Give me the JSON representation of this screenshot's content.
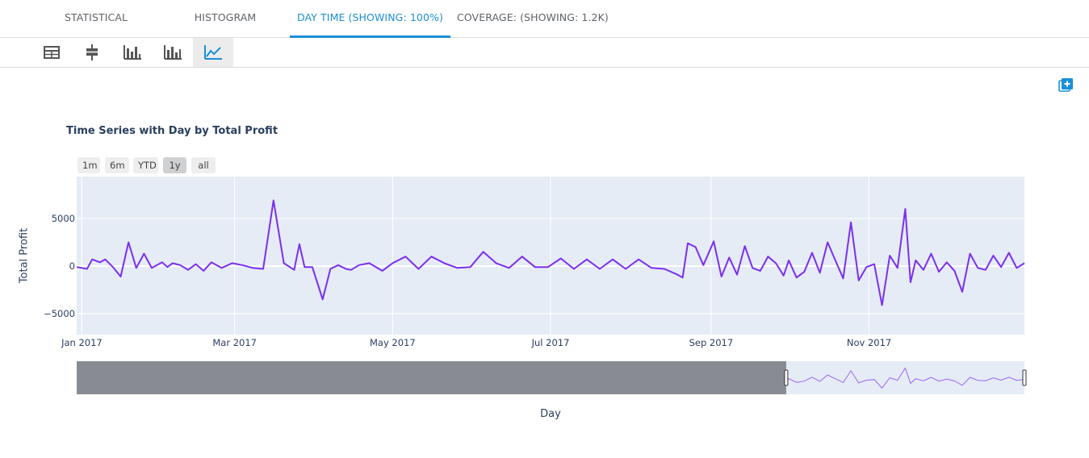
{
  "tabs": [
    {
      "label": "STATISTICAL",
      "active": false
    },
    {
      "label": "HISTOGRAM",
      "active": false
    },
    {
      "label": "DAY TIME (SHOWING: 100%)",
      "active": true
    },
    {
      "label": "COVERAGE: (SHOWING: 1.2K)",
      "active": false
    }
  ],
  "toolbar": {
    "tools": [
      {
        "icon": "table-icon",
        "active": false
      },
      {
        "icon": "boxplot-icon",
        "active": false
      },
      {
        "icon": "histogram-icon",
        "active": false
      },
      {
        "icon": "bar-chart-icon",
        "active": false
      },
      {
        "icon": "line-chart-icon",
        "active": true
      }
    ]
  },
  "add_button": {
    "icon": "add-to-dashboard-icon"
  },
  "range_selector": {
    "buttons": [
      {
        "label": "1m",
        "active": false
      },
      {
        "label": "6m",
        "active": false
      },
      {
        "label": "YTD",
        "active": false
      },
      {
        "label": "1y",
        "active": true
      },
      {
        "label": "all",
        "active": false
      }
    ]
  },
  "chart_data": {
    "type": "line",
    "title": "Time Series with Day by Total Profit",
    "xlabel": "Day",
    "ylabel": "Total Profit",
    "x_range": [
      "2016-12-30",
      "2017-12-31"
    ],
    "ylim": [
      -7200,
      9400
    ],
    "yticks": [
      -5000,
      0,
      5000
    ],
    "ytick_labels": [
      "−5000",
      "0",
      "5000"
    ],
    "xticks": [
      "2017-01-01",
      "2017-03-01",
      "2017-05-01",
      "2017-07-01",
      "2017-09-01",
      "2017-11-01"
    ],
    "xtick_labels": [
      "Jan 2017",
      "Mar 2017",
      "May 2017",
      "Jul 2017",
      "Sep 2017",
      "Nov 2017"
    ],
    "grid": true,
    "colors": {
      "line": "#7a2ff0",
      "plot_bg": "#e5ecf6",
      "grid": "#ffffff",
      "slider_mask": "#888b91"
    },
    "slider_window": [
      "2017-09-30",
      "2017-12-31"
    ],
    "series": [
      {
        "x": [
          "2016-12-30",
          "2017-01-03",
          "2017-01-05",
          "2017-01-08",
          "2017-01-10",
          "2017-01-13",
          "2017-01-16",
          "2017-01-19",
          "2017-01-22",
          "2017-01-25",
          "2017-01-28",
          "2017-02-01",
          "2017-02-03",
          "2017-02-05",
          "2017-02-08",
          "2017-02-11",
          "2017-02-14",
          "2017-02-17",
          "2017-02-20",
          "2017-02-24",
          "2017-02-28",
          "2017-03-04",
          "2017-03-08",
          "2017-03-12",
          "2017-03-16",
          "2017-03-20",
          "2017-03-24",
          "2017-03-26",
          "2017-03-28",
          "2017-03-31",
          "2017-04-04",
          "2017-04-07",
          "2017-04-10",
          "2017-04-13",
          "2017-04-15",
          "2017-04-18",
          "2017-04-22",
          "2017-04-27",
          "2017-05-01",
          "2017-05-06",
          "2017-05-11",
          "2017-05-16",
          "2017-05-21",
          "2017-05-26",
          "2017-05-31",
          "2017-06-05",
          "2017-06-10",
          "2017-06-15",
          "2017-06-20",
          "2017-06-25",
          "2017-06-30",
          "2017-07-05",
          "2017-07-10",
          "2017-07-15",
          "2017-07-20",
          "2017-07-25",
          "2017-07-30",
          "2017-08-04",
          "2017-08-09",
          "2017-08-14",
          "2017-08-19",
          "2017-08-21",
          "2017-08-23",
          "2017-08-26",
          "2017-08-29",
          "2017-09-02",
          "2017-09-05",
          "2017-09-08",
          "2017-09-11",
          "2017-09-14",
          "2017-09-17",
          "2017-09-20",
          "2017-09-23",
          "2017-09-26",
          "2017-09-29",
          "2017-10-01",
          "2017-10-04",
          "2017-10-07",
          "2017-10-10",
          "2017-10-13",
          "2017-10-16",
          "2017-10-19",
          "2017-10-22",
          "2017-10-25",
          "2017-10-28",
          "2017-10-31",
          "2017-11-03",
          "2017-11-06",
          "2017-11-09",
          "2017-11-12",
          "2017-11-15",
          "2017-11-17",
          "2017-11-19",
          "2017-11-22",
          "2017-11-25",
          "2017-11-28",
          "2017-12-01",
          "2017-12-04",
          "2017-12-07",
          "2017-12-10",
          "2017-12-13",
          "2017-12-16",
          "2017-12-19",
          "2017-12-22",
          "2017-12-25",
          "2017-12-28",
          "2017-12-31"
        ],
        "y": [
          -100,
          -300,
          700,
          400,
          700,
          -100,
          -1100,
          2500,
          -200,
          1300,
          -200,
          400,
          -100,
          300,
          100,
          -400,
          200,
          -500,
          400,
          -200,
          300,
          100,
          -200,
          -300,
          6900,
          300,
          -400,
          2300,
          -100,
          -100,
          -3500,
          -300,
          100,
          -300,
          -400,
          100,
          300,
          -500,
          300,
          1000,
          -300,
          1000,
          300,
          -200,
          -100,
          1500,
          300,
          -200,
          1000,
          -100,
          -100,
          800,
          -300,
          700,
          -300,
          700,
          -300,
          700,
          -200,
          -300,
          -900,
          -1200,
          2400,
          2000,
          100,
          2600,
          -1100,
          900,
          -900,
          2100,
          -200,
          -500,
          1000,
          300,
          -1000,
          600,
          -1200,
          -600,
          1400,
          -700,
          2500,
          600,
          -1300,
          4600,
          -1500,
          -100,
          200,
          -4100,
          1100,
          -200,
          6000,
          -1700,
          600,
          -400,
          1300,
          -600,
          400,
          -500,
          -2700,
          1300,
          -200,
          -400,
          1100,
          -100,
          1400,
          -200,
          300
        ]
      }
    ]
  }
}
